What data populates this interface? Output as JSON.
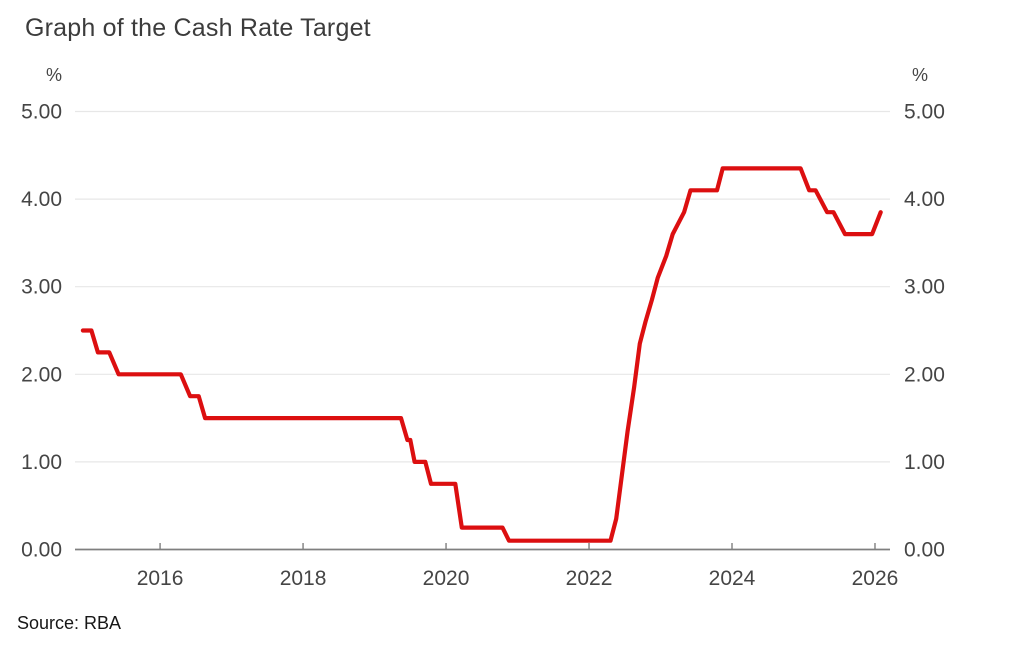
{
  "page": {
    "title": "Graph of the Cash Rate Target",
    "source": "Source: RBA"
  },
  "chart_data": {
    "type": "line",
    "title": "Graph of the Cash Rate Target",
    "source": "Source: RBA",
    "unit_left": "%",
    "unit_right": "%",
    "grid": true,
    "legend": "none",
    "xlim": [
      2014.81,
      2026.21
    ],
    "ylim": [
      0,
      5
    ],
    "x_ticks": [
      {
        "v": 2016,
        "label": "2016"
      },
      {
        "v": 2018,
        "label": "2018"
      },
      {
        "v": 2020,
        "label": "2020"
      },
      {
        "v": 2022,
        "label": "2022"
      },
      {
        "v": 2024,
        "label": "2024"
      },
      {
        "v": 2026,
        "label": "2026"
      }
    ],
    "y_ticks": [
      {
        "v": 0,
        "label": "0.00"
      },
      {
        "v": 1,
        "label": "1.00"
      },
      {
        "v": 2,
        "label": "2.00"
      },
      {
        "v": 3,
        "label": "3.00"
      },
      {
        "v": 4,
        "label": "4.00"
      },
      {
        "v": 5,
        "label": "5.00"
      }
    ],
    "line_color": "#dc0f10",
    "grid_color": "#e7e7e7",
    "axis_color": "#7f7f7f",
    "label_color": "#454545",
    "series": [
      {
        "name": "Cash Rate Target (%)",
        "points": [
          [
            2014.92,
            2.5
          ],
          [
            2015.04,
            2.5
          ],
          [
            2015.13,
            2.25
          ],
          [
            2015.29,
            2.25
          ],
          [
            2015.42,
            2.0
          ],
          [
            2016.29,
            2.0
          ],
          [
            2016.42,
            1.75
          ],
          [
            2016.54,
            1.75
          ],
          [
            2016.63,
            1.5
          ],
          [
            2019.37,
            1.5
          ],
          [
            2019.46,
            1.25
          ],
          [
            2019.5,
            1.25
          ],
          [
            2019.56,
            1.0
          ],
          [
            2019.71,
            1.0
          ],
          [
            2019.79,
            0.75
          ],
          [
            2020.13,
            0.75
          ],
          [
            2020.22,
            0.25
          ],
          [
            2020.79,
            0.25
          ],
          [
            2020.88,
            0.1
          ],
          [
            2022.3,
            0.1
          ],
          [
            2022.38,
            0.35
          ],
          [
            2022.46,
            0.85
          ],
          [
            2022.54,
            1.35
          ],
          [
            2022.63,
            1.85
          ],
          [
            2022.71,
            2.35
          ],
          [
            2022.79,
            2.6
          ],
          [
            2022.88,
            2.85
          ],
          [
            2022.96,
            3.1
          ],
          [
            2023.08,
            3.35
          ],
          [
            2023.17,
            3.6
          ],
          [
            2023.33,
            3.85
          ],
          [
            2023.42,
            4.1
          ],
          [
            2023.79,
            4.1
          ],
          [
            2023.87,
            4.35
          ],
          [
            2024.96,
            4.35
          ],
          [
            2025.08,
            4.1
          ],
          [
            2025.17,
            4.1
          ],
          [
            2025.33,
            3.85
          ],
          [
            2025.42,
            3.85
          ],
          [
            2025.58,
            3.6
          ],
          [
            2025.96,
            3.6
          ],
          [
            2026.08,
            3.85
          ]
        ]
      }
    ]
  }
}
